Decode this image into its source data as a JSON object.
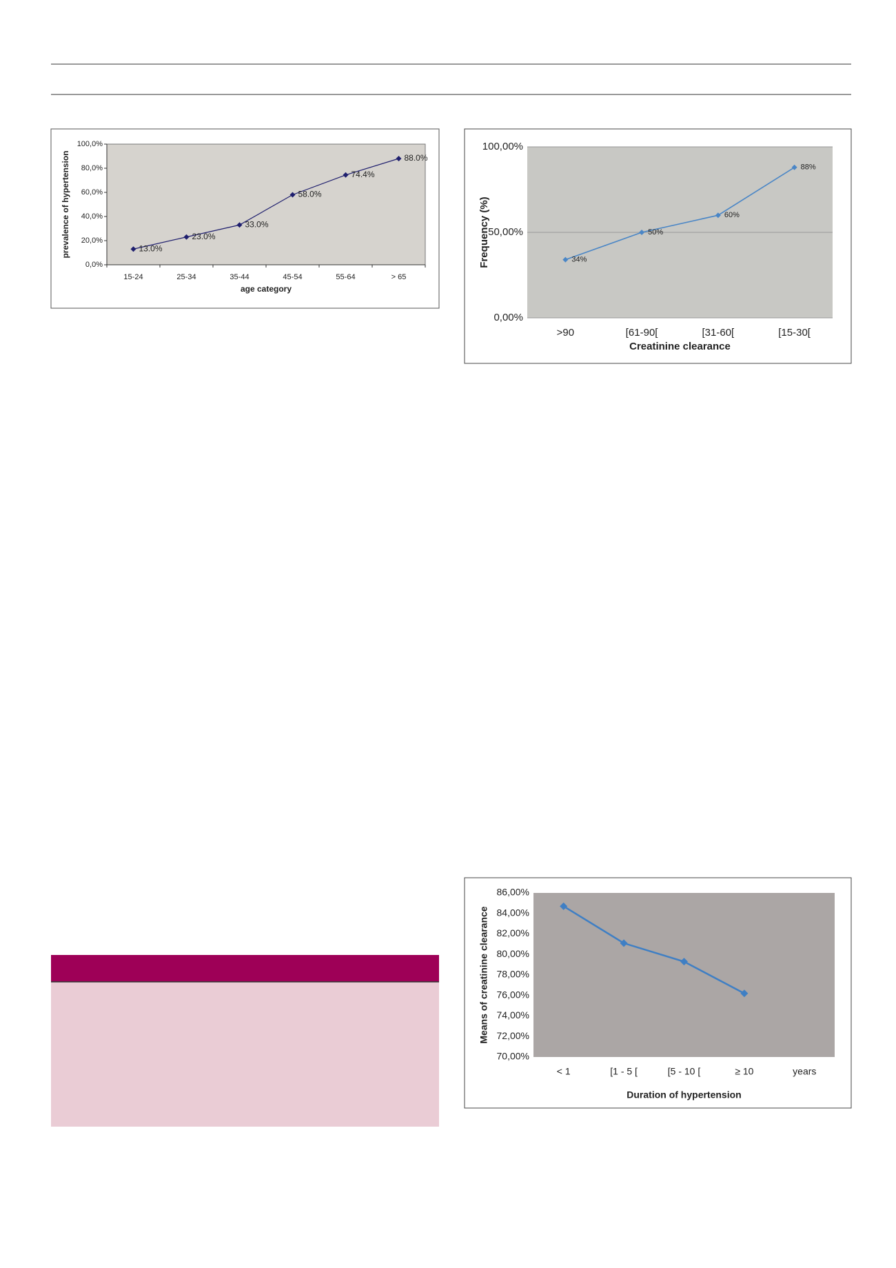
{
  "chart_data": [
    {
      "type": "line",
      "xlabel": "age category",
      "ylabel": "prevalence of hypertension",
      "categories": [
        "15-24",
        "25-34",
        "35-44",
        "45-54",
        "55-64",
        "> 65"
      ],
      "values": [
        13,
        23,
        33,
        58,
        74.4,
        88
      ],
      "value_labels": [
        "13.0%",
        "23.0%",
        "33.0%",
        "58.0%",
        "74.4%",
        "88.0%"
      ],
      "color": "#1f1f6e",
      "ylim": [
        0,
        100
      ],
      "yticks": [
        {
          "value": 0,
          "label": "0,0%"
        },
        {
          "value": 20,
          "label": "20,0%"
        },
        {
          "value": 40,
          "label": "40,0%"
        },
        {
          "value": 60,
          "label": "60,0%"
        },
        {
          "value": 80,
          "label": "80,0%"
        },
        {
          "value": 100,
          "label": "100,0%"
        }
      ],
      "grid": false
    },
    {
      "type": "line",
      "xlabel": "Creatinine clearance",
      "ylabel": "Frequency (%)",
      "categories": [
        ">90",
        "[61-90[",
        "[31-60[",
        "[15-30["
      ],
      "values": [
        34,
        50,
        60,
        88
      ],
      "value_labels": [
        "34%",
        "50%",
        "60%",
        "88%"
      ],
      "color": "#4a86c6",
      "ylim": [
        0,
        100
      ],
      "yticks": [
        {
          "value": 0,
          "label": "0,00%"
        },
        {
          "value": 50,
          "label": "50,00%"
        },
        {
          "value": 100,
          "label": "100,00%"
        }
      ],
      "grid": true
    },
    {
      "type": "line",
      "xlabel": "Duration of hypertension",
      "ylabel": "Means of creatinine clearance",
      "categories": [
        "< 1",
        "[1 - 5 [",
        "[5 - 10 [",
        "≥ 10",
        "years"
      ],
      "values": [
        84.7,
        81.1,
        79.3,
        76.2,
        null
      ],
      "color": "#3f7fc4",
      "ylim": [
        70,
        86
      ],
      "yticks": [
        {
          "value": 70,
          "label": "70,00%"
        },
        {
          "value": 72,
          "label": "72,00%"
        },
        {
          "value": 74,
          "label": "74,00%"
        },
        {
          "value": 76,
          "label": "76,00%"
        },
        {
          "value": 78,
          "label": "78,00%"
        },
        {
          "value": 80,
          "label": "80,00%"
        },
        {
          "value": 82,
          "label": "82,00%"
        },
        {
          "value": 84,
          "label": "84,00%"
        },
        {
          "value": 86,
          "label": "86,00%"
        }
      ],
      "grid": false
    }
  ]
}
